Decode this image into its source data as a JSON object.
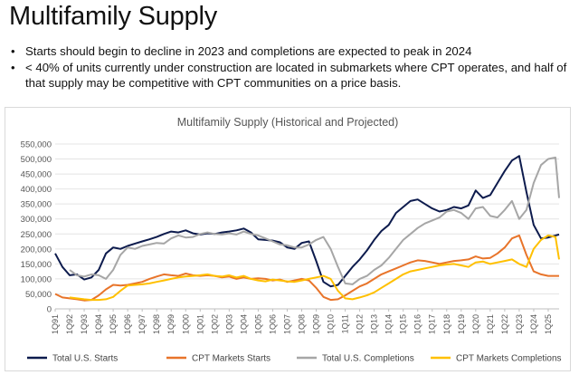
{
  "page": {
    "title": "Multifamily Supply",
    "bullets": [
      "Starts should begin to decline in 2023 and completions are expected to peak in 2024",
      "< 40% of units currently under construction are located in submarkets where CPT operates, and half of that supply may be competitive with CPT communities on a price basis."
    ]
  },
  "chart_data": {
    "type": "line",
    "title": "Multifamily Supply (Historical and Projected)",
    "xlabel": "",
    "ylabel": "",
    "ylim": [
      0,
      550000
    ],
    "yticks": [
      "0",
      "50,000",
      "100,000",
      "150,000",
      "200,000",
      "250,000",
      "300,000",
      "350,000",
      "400,000",
      "450,000",
      "500,000",
      "550,000"
    ],
    "xtick_labels": [
      "1Q91",
      "1Q92",
      "1Q93",
      "1Q94",
      "1Q95",
      "1Q96",
      "1Q97",
      "1Q98",
      "1Q99",
      "1Q00",
      "1Q01",
      "1Q02",
      "1Q03",
      "1Q04",
      "1Q05",
      "1Q06",
      "1Q07",
      "1Q08",
      "1Q09",
      "1Q10",
      "1Q11",
      "1Q12",
      "1Q13",
      "1Q14",
      "1Q15",
      "1Q16",
      "1Q17",
      "1Q18",
      "1Q19",
      "1Q20",
      "1Q21",
      "1Q22",
      "1Q23",
      "1Q24",
      "1Q25"
    ],
    "x_start_year": 1991,
    "x_end_year": 2025.75,
    "grid": "horizontal",
    "legend_position": "bottom",
    "series": [
      {
        "name": "Total U.S. Starts",
        "color": "#0d1b4d",
        "points": [
          [
            1991,
            185000
          ],
          [
            1991.5,
            140000
          ],
          [
            1992,
            112000
          ],
          [
            1992.5,
            115000
          ],
          [
            1993,
            98000
          ],
          [
            1993.5,
            105000
          ],
          [
            1994,
            130000
          ],
          [
            1994.5,
            185000
          ],
          [
            1995,
            205000
          ],
          [
            1995.5,
            200000
          ],
          [
            1996,
            210000
          ],
          [
            1996.5,
            218000
          ],
          [
            1997,
            225000
          ],
          [
            1997.5,
            232000
          ],
          [
            1998,
            240000
          ],
          [
            1998.5,
            250000
          ],
          [
            1999,
            258000
          ],
          [
            1999.5,
            255000
          ],
          [
            2000,
            262000
          ],
          [
            2000.5,
            252000
          ],
          [
            2001,
            248000
          ],
          [
            2001.5,
            252000
          ],
          [
            2002,
            250000
          ],
          [
            2002.5,
            255000
          ],
          [
            2003,
            258000
          ],
          [
            2003.5,
            262000
          ],
          [
            2004,
            268000
          ],
          [
            2004.5,
            255000
          ],
          [
            2005,
            232000
          ],
          [
            2005.5,
            230000
          ],
          [
            2006,
            228000
          ],
          [
            2006.5,
            222000
          ],
          [
            2007,
            205000
          ],
          [
            2007.5,
            200000
          ],
          [
            2008,
            220000
          ],
          [
            2008.5,
            225000
          ],
          [
            2009,
            160000
          ],
          [
            2009.5,
            90000
          ],
          [
            2010,
            75000
          ],
          [
            2010.5,
            80000
          ],
          [
            2011,
            110000
          ],
          [
            2011.5,
            140000
          ],
          [
            2012,
            165000
          ],
          [
            2012.5,
            195000
          ],
          [
            2013,
            230000
          ],
          [
            2013.5,
            260000
          ],
          [
            2014,
            280000
          ],
          [
            2014.5,
            320000
          ],
          [
            2015,
            340000
          ],
          [
            2015.5,
            360000
          ],
          [
            2016,
            365000
          ],
          [
            2016.5,
            350000
          ],
          [
            2017,
            335000
          ],
          [
            2017.5,
            325000
          ],
          [
            2018,
            330000
          ],
          [
            2018.5,
            340000
          ],
          [
            2019,
            335000
          ],
          [
            2019.5,
            345000
          ],
          [
            2020,
            395000
          ],
          [
            2020.5,
            370000
          ],
          [
            2021,
            380000
          ],
          [
            2021.5,
            420000
          ],
          [
            2022,
            460000
          ],
          [
            2022.5,
            495000
          ],
          [
            2023,
            510000
          ],
          [
            2023.5,
            390000
          ],
          [
            2024,
            280000
          ],
          [
            2024.5,
            235000
          ],
          [
            2025,
            238000
          ],
          [
            2025.75,
            248000
          ]
        ]
      },
      {
        "name": "CPT Markets Starts",
        "color": "#e8742a",
        "points": [
          [
            1991,
            50000
          ],
          [
            1991.5,
            38000
          ],
          [
            1992,
            35000
          ],
          [
            1992.5,
            32000
          ],
          [
            1993,
            28000
          ],
          [
            1993.5,
            30000
          ],
          [
            1994,
            45000
          ],
          [
            1994.5,
            65000
          ],
          [
            1995,
            80000
          ],
          [
            1995.5,
            78000
          ],
          [
            1996,
            80000
          ],
          [
            1996.5,
            85000
          ],
          [
            1997,
            90000
          ],
          [
            1997.5,
            100000
          ],
          [
            1998,
            108000
          ],
          [
            1998.5,
            115000
          ],
          [
            1999,
            112000
          ],
          [
            1999.5,
            110000
          ],
          [
            2000,
            118000
          ],
          [
            2000.5,
            112000
          ],
          [
            2001,
            110000
          ],
          [
            2001.5,
            112000
          ],
          [
            2002,
            110000
          ],
          [
            2002.5,
            105000
          ],
          [
            2003,
            108000
          ],
          [
            2003.5,
            100000
          ],
          [
            2004,
            105000
          ],
          [
            2004.5,
            100000
          ],
          [
            2005,
            102000
          ],
          [
            2005.5,
            100000
          ],
          [
            2006,
            95000
          ],
          [
            2006.5,
            98000
          ],
          [
            2007,
            90000
          ],
          [
            2007.5,
            95000
          ],
          [
            2008,
            100000
          ],
          [
            2008.5,
            95000
          ],
          [
            2009,
            70000
          ],
          [
            2009.5,
            40000
          ],
          [
            2010,
            30000
          ],
          [
            2010.5,
            32000
          ],
          [
            2011,
            45000
          ],
          [
            2011.5,
            60000
          ],
          [
            2012,
            75000
          ],
          [
            2012.5,
            85000
          ],
          [
            2013,
            100000
          ],
          [
            2013.5,
            115000
          ],
          [
            2014,
            125000
          ],
          [
            2014.5,
            135000
          ],
          [
            2015,
            145000
          ],
          [
            2015.5,
            155000
          ],
          [
            2016,
            162000
          ],
          [
            2016.5,
            160000
          ],
          [
            2017,
            155000
          ],
          [
            2017.5,
            150000
          ],
          [
            2018,
            155000
          ],
          [
            2018.5,
            160000
          ],
          [
            2019,
            162000
          ],
          [
            2019.5,
            165000
          ],
          [
            2020,
            175000
          ],
          [
            2020.5,
            168000
          ],
          [
            2021,
            170000
          ],
          [
            2021.5,
            185000
          ],
          [
            2022,
            205000
          ],
          [
            2022.5,
            235000
          ],
          [
            2023,
            245000
          ],
          [
            2023.5,
            180000
          ],
          [
            2024,
            125000
          ],
          [
            2024.5,
            115000
          ],
          [
            2025,
            110000
          ],
          [
            2025.75,
            110000
          ]
        ]
      },
      {
        "name": "Total U.S. Completions",
        "color": "#a6a6a6",
        "points": [
          [
            1992,
            130000
          ],
          [
            1992.5,
            112000
          ],
          [
            1993,
            108000
          ],
          [
            1993.5,
            115000
          ],
          [
            1994,
            112000
          ],
          [
            1994.5,
            100000
          ],
          [
            1995,
            130000
          ],
          [
            1995.5,
            180000
          ],
          [
            1996,
            205000
          ],
          [
            1996.5,
            200000
          ],
          [
            1997,
            210000
          ],
          [
            1997.5,
            215000
          ],
          [
            1998,
            220000
          ],
          [
            1998.5,
            218000
          ],
          [
            1999,
            235000
          ],
          [
            1999.5,
            245000
          ],
          [
            2000,
            238000
          ],
          [
            2000.5,
            240000
          ],
          [
            2001,
            250000
          ],
          [
            2001.5,
            255000
          ],
          [
            2002,
            250000
          ],
          [
            2002.5,
            248000
          ],
          [
            2003,
            252000
          ],
          [
            2003.5,
            248000
          ],
          [
            2004,
            258000
          ],
          [
            2004.5,
            250000
          ],
          [
            2005,
            245000
          ],
          [
            2005.5,
            235000
          ],
          [
            2006,
            225000
          ],
          [
            2006.5,
            215000
          ],
          [
            2007,
            212000
          ],
          [
            2007.5,
            205000
          ],
          [
            2008,
            205000
          ],
          [
            2008.5,
            215000
          ],
          [
            2009,
            230000
          ],
          [
            2009.5,
            240000
          ],
          [
            2010,
            200000
          ],
          [
            2010.5,
            140000
          ],
          [
            2011,
            85000
          ],
          [
            2011.5,
            82000
          ],
          [
            2012,
            100000
          ],
          [
            2012.5,
            110000
          ],
          [
            2013,
            130000
          ],
          [
            2013.5,
            145000
          ],
          [
            2014,
            170000
          ],
          [
            2014.5,
            200000
          ],
          [
            2015,
            230000
          ],
          [
            2015.5,
            250000
          ],
          [
            2016,
            270000
          ],
          [
            2016.5,
            285000
          ],
          [
            2017,
            295000
          ],
          [
            2017.5,
            305000
          ],
          [
            2018,
            325000
          ],
          [
            2018.5,
            330000
          ],
          [
            2019,
            320000
          ],
          [
            2019.5,
            300000
          ],
          [
            2020,
            335000
          ],
          [
            2020.5,
            340000
          ],
          [
            2021,
            310000
          ],
          [
            2021.5,
            305000
          ],
          [
            2022,
            330000
          ],
          [
            2022.5,
            360000
          ],
          [
            2023,
            300000
          ],
          [
            2023.5,
            330000
          ],
          [
            2024,
            420000
          ],
          [
            2024.5,
            480000
          ],
          [
            2025,
            500000
          ],
          [
            2025.5,
            505000
          ],
          [
            2025.75,
            370000
          ]
        ]
      },
      {
        "name": "CPT Markets Completions",
        "color": "#ffc000",
        "points": [
          [
            1992,
            38000
          ],
          [
            1992.5,
            35000
          ],
          [
            1993,
            32000
          ],
          [
            1993.5,
            30000
          ],
          [
            1994,
            30000
          ],
          [
            1994.5,
            32000
          ],
          [
            1995,
            40000
          ],
          [
            1995.5,
            60000
          ],
          [
            1996,
            78000
          ],
          [
            1996.5,
            80000
          ],
          [
            1997,
            82000
          ],
          [
            1997.5,
            85000
          ],
          [
            1998,
            90000
          ],
          [
            1998.5,
            95000
          ],
          [
            1999,
            100000
          ],
          [
            1999.5,
            105000
          ],
          [
            2000,
            108000
          ],
          [
            2000.5,
            110000
          ],
          [
            2001,
            112000
          ],
          [
            2001.5,
            115000
          ],
          [
            2002,
            110000
          ],
          [
            2002.5,
            108000
          ],
          [
            2003,
            112000
          ],
          [
            2003.5,
            105000
          ],
          [
            2004,
            110000
          ],
          [
            2004.5,
            100000
          ],
          [
            2005,
            95000
          ],
          [
            2005.5,
            92000
          ],
          [
            2006,
            98000
          ],
          [
            2006.5,
            95000
          ],
          [
            2007,
            92000
          ],
          [
            2007.5,
            90000
          ],
          [
            2008,
            95000
          ],
          [
            2008.5,
            100000
          ],
          [
            2009,
            105000
          ],
          [
            2009.5,
            110000
          ],
          [
            2010,
            100000
          ],
          [
            2010.5,
            60000
          ],
          [
            2011,
            35000
          ],
          [
            2011.5,
            32000
          ],
          [
            2012,
            38000
          ],
          [
            2012.5,
            45000
          ],
          [
            2013,
            55000
          ],
          [
            2013.5,
            70000
          ],
          [
            2014,
            85000
          ],
          [
            2014.5,
            100000
          ],
          [
            2015,
            115000
          ],
          [
            2015.5,
            125000
          ],
          [
            2016,
            130000
          ],
          [
            2016.5,
            135000
          ],
          [
            2017,
            140000
          ],
          [
            2017.5,
            145000
          ],
          [
            2018,
            148000
          ],
          [
            2018.5,
            150000
          ],
          [
            2019,
            145000
          ],
          [
            2019.5,
            140000
          ],
          [
            2020,
            155000
          ],
          [
            2020.5,
            158000
          ],
          [
            2021,
            150000
          ],
          [
            2021.5,
            155000
          ],
          [
            2022,
            160000
          ],
          [
            2022.5,
            165000
          ],
          [
            2023,
            150000
          ],
          [
            2023.5,
            140000
          ],
          [
            2024,
            200000
          ],
          [
            2024.5,
            230000
          ],
          [
            2025,
            245000
          ],
          [
            2025.5,
            240000
          ],
          [
            2025.75,
            165000
          ]
        ]
      }
    ]
  }
}
